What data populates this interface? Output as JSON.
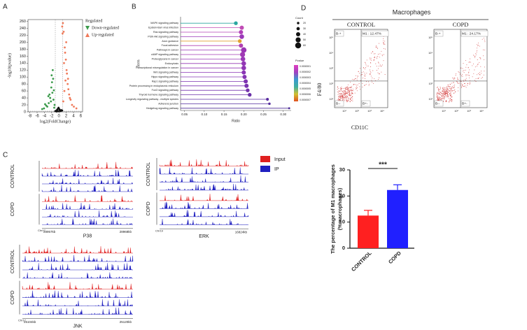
{
  "panel_labels": [
    "A",
    "B",
    "C",
    "D"
  ],
  "chart_data": [
    {
      "type": "scatter",
      "xlabel": "log2(FoldChange)",
      "ylabel": "-log10(pvalue)",
      "xlim": [
        -8.5,
        6.5
      ],
      "ylim": [
        0,
        265
      ],
      "xticks": [
        -8,
        -6,
        -4,
        -2,
        0,
        2,
        4,
        6
      ],
      "yticks": [
        0,
        20,
        40,
        60,
        80,
        100,
        120,
        140,
        160,
        180,
        200,
        220,
        240,
        260
      ],
      "legend_title": "Regulated",
      "series": [
        {
          "name": "Down-regulated",
          "color": "#3a9a4a",
          "x": [
            -1.2,
            -1.5,
            -1.8,
            -2.1,
            -2.4,
            -2.8,
            -3.2,
            -1.4,
            -1.9,
            -2.6,
            -3.5,
            -4.1,
            -1.6,
            -2.2,
            -1.3,
            -2.0,
            -2.9,
            -1.7,
            -3.8,
            -4.6
          ],
          "y": [
            20,
            35,
            55,
            70,
            40,
            25,
            15,
            62,
            85,
            50,
            18,
            10,
            95,
            30,
            12,
            105,
            45,
            120,
            22,
            8
          ]
        },
        {
          "name": "Up-regulated",
          "color": "#f07a5a",
          "x": [
            1.2,
            1.5,
            1.8,
            2.1,
            2.4,
            2.8,
            3.2,
            3.6,
            1.4,
            1.9,
            2.6,
            3.0,
            1.6,
            2.2,
            1.3,
            2.0,
            2.5,
            4.1,
            4.8,
            1.1,
            1.7,
            0.9,
            1.0
          ],
          "y": [
            30,
            60,
            90,
            120,
            80,
            50,
            35,
            20,
            140,
            150,
            65,
            40,
            185,
            110,
            230,
            200,
            95,
            15,
            10,
            255,
            170,
            245,
            225
          ]
        },
        {
          "color": "#111111",
          "x": [
            -0.8,
            -0.5,
            -0.2,
            0.1,
            0.4,
            0.7,
            -0.6,
            0.3,
            -0.3,
            0.6,
            -1.0,
            0.9,
            -0.1,
            0.2
          ],
          "y": [
            3,
            6,
            2,
            8,
            4,
            5,
            1,
            2,
            9,
            3,
            2,
            4,
            12,
            6
          ]
        }
      ]
    },
    {
      "type": "lollipop",
      "xlabel": "Ratio",
      "ylabel": "Term",
      "xlim": [
        0.04,
        0.32
      ],
      "xticks": [
        {
          "value": 0.05,
          "label": "0.05"
        },
        {
          "value": 0.1,
          "label": "0.10"
        },
        {
          "value": 0.15,
          "label": "0.15"
        },
        {
          "value": 0.2,
          "label": "0.20"
        },
        {
          "value": 0.25,
          "label": "0.25"
        },
        {
          "value": 0.3,
          "label": "0.30"
        }
      ],
      "categories": [
        "MAPK signaling pathway",
        "Epstein-Barr virus infection",
        "Ras signaling pathway",
        "PI3K-Akt signaling pathway",
        "Axon guidance",
        "Focal adhesion",
        "Pathways in cancer",
        "cAMP signaling pathway",
        "Proteoglycans in cancer",
        "Endocytosis",
        "Transcriptional misregulation in cancer",
        "Wnt signaling pathway",
        "Hippo signaling pathway",
        "Rap1 signaling pathway",
        "Protein processing in endoplasmic reticulum",
        "FoxO signaling pathway",
        "Thyroid hormone signaling pathway",
        "Longevity regulating pathway - multiple species",
        "Adherens junction",
        "Hedgehog signaling pathway"
      ],
      "values": [
        0.18,
        0.195,
        0.193,
        0.195,
        0.19,
        0.193,
        0.2,
        0.197,
        0.198,
        0.2,
        0.2,
        0.2,
        0.202,
        0.205,
        0.207,
        0.21,
        0.215,
        0.26,
        0.265,
        0.315
      ],
      "sizes": [
        35,
        40,
        40,
        45,
        35,
        40,
        55,
        50,
        45,
        45,
        45,
        40,
        40,
        40,
        40,
        35,
        35,
        25,
        20,
        15
      ],
      "colors": [
        "#2aa7a0",
        "#c04bb5",
        "#b03fb8",
        "#9a38b8",
        "#e0a030",
        "#b040b0",
        "#9b35b5",
        "#a03ab5",
        "#9a38b8",
        "#9338b5",
        "#9035b5",
        "#8a35b5",
        "#8535b3",
        "#7d33b0",
        "#7a33b0",
        "#7533ad",
        "#6a30a8",
        "#5a2da0",
        "#552d9d",
        "#4a2a95"
      ],
      "count_title": "Count",
      "count_legend": [
        20,
        30,
        40,
        50,
        60
      ],
      "pvalue_title": "Pvalue",
      "pvalue_legend": [
        "0.0000001",
        "0.0000002",
        "0.0000003",
        "0.0000004",
        "0.0000005",
        "0.0000006",
        "0.0000007"
      ]
    },
    {
      "type": "bar",
      "ylabel": "The percentage of M1 macrophages",
      "ylabel_unit": "(%macrophages)",
      "categories": [
        "CONTROL",
        "COPD"
      ],
      "values": [
        12.5,
        22.3
      ],
      "errors": [
        2,
        2
      ],
      "colors": [
        "#ff2020",
        "#2020ff"
      ],
      "ylim": [
        0,
        30
      ],
      "yticks": [
        0,
        10,
        20,
        30
      ],
      "annotation": "***"
    }
  ],
  "tracks": {
    "legend": [
      {
        "name": "Input",
        "color": "#e02020"
      },
      {
        "name": "IP",
        "color": "#2020c0"
      }
    ],
    "groups": [
      "CONTROL",
      "COPD"
    ],
    "loci": [
      {
        "gene": "P38",
        "chr": "Chr17",
        "start": "28957kb",
        "end": "28968kb"
      },
      {
        "gene": "ERK",
        "chr": "Chr19",
        "end": "16824kb"
      },
      {
        "gene": "JNK",
        "chr": "Chr17",
        "start": "25104kb",
        "end": "25120kb"
      }
    ]
  },
  "flow": {
    "title": "Macrophages",
    "xlabel": "CD11C",
    "ylabel": "F4/80",
    "quadrants": [
      "B-+",
      "B--",
      "B+-"
    ],
    "groups": [
      {
        "name": "CONTROL",
        "gate": "M1 : 12.47%"
      },
      {
        "name": "COPD",
        "gate": "M1 : 24.17%"
      }
    ],
    "yticks": [
      "10⁵",
      "10⁴",
      "10³",
      "10²",
      "10¹"
    ],
    "xticks": [
      "10¹",
      "10²",
      "10³",
      "10⁴"
    ]
  }
}
